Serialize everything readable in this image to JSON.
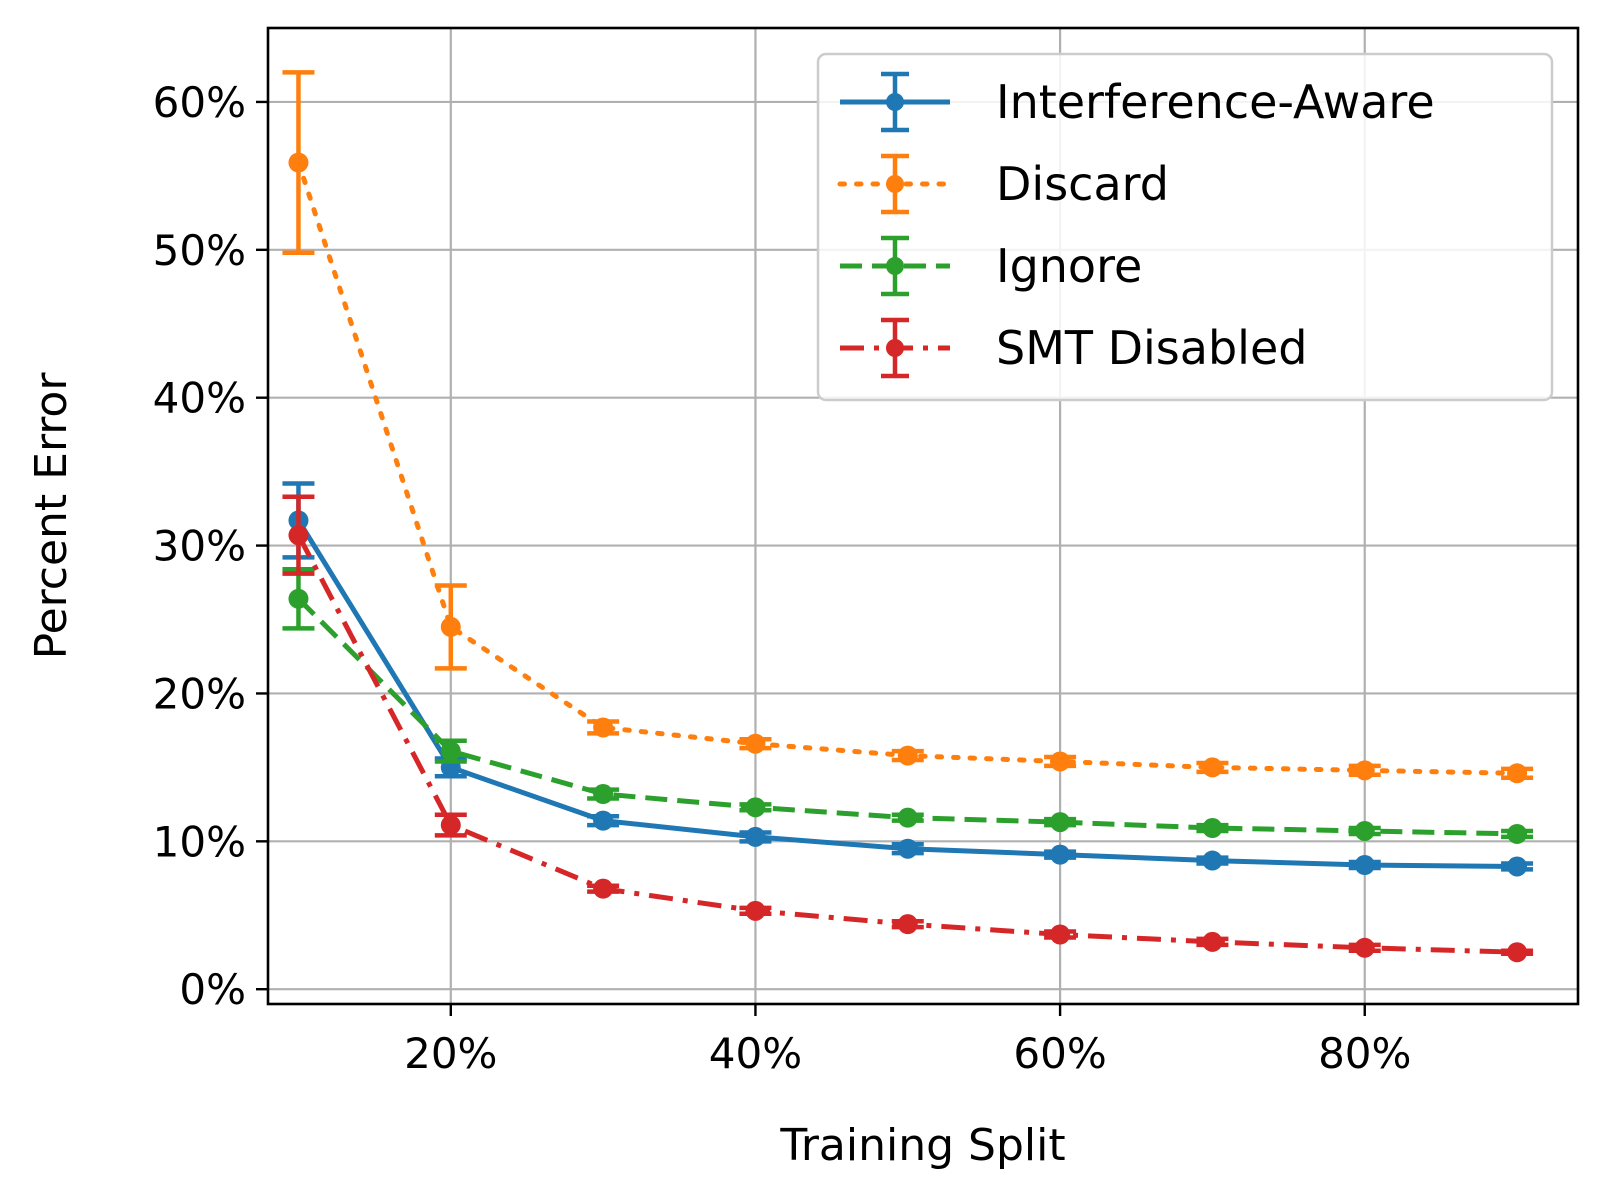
{
  "chart_data": {
    "type": "line",
    "title": "",
    "xlabel": "Training Split",
    "ylabel": "Percent Error",
    "xlim": [
      8,
      94
    ],
    "ylim": [
      -1,
      65
    ],
    "grid": true,
    "legend_position": "top-right",
    "x": [
      10,
      20,
      30,
      40,
      50,
      60,
      70,
      80,
      90
    ],
    "x_ticks": [
      {
        "value": 20,
        "label": "20%"
      },
      {
        "value": 40,
        "label": "40%"
      },
      {
        "value": 60,
        "label": "60%"
      },
      {
        "value": 80,
        "label": "80%"
      }
    ],
    "y_ticks": [
      {
        "value": 0,
        "label": "0%"
      },
      {
        "value": 10,
        "label": "10%"
      },
      {
        "value": 20,
        "label": "20%"
      },
      {
        "value": 30,
        "label": "30%"
      },
      {
        "value": 40,
        "label": "40%"
      },
      {
        "value": 50,
        "label": "50%"
      },
      {
        "value": 60,
        "label": "60%"
      }
    ],
    "series": [
      {
        "name": "Interference-Aware",
        "color": "#1f77b4",
        "line_style": "solid",
        "values": [
          31.7,
          15.0,
          11.4,
          10.3,
          9.5,
          9.1,
          8.7,
          8.4,
          8.3
        ],
        "errors": [
          2.5,
          0.6,
          0.3,
          0.3,
          0.3,
          0.2,
          0.2,
          0.2,
          0.2
        ]
      },
      {
        "name": "Discard",
        "color": "#ff7f0e",
        "line_style": "dotted",
        "values": [
          55.9,
          24.5,
          17.7,
          16.6,
          15.8,
          15.4,
          15.0,
          14.8,
          14.6
        ],
        "errors": [
          6.1,
          2.8,
          0.4,
          0.3,
          0.3,
          0.3,
          0.3,
          0.3,
          0.3
        ]
      },
      {
        "name": "Ignore",
        "color": "#2ca02c",
        "line_style": "dashed",
        "values": [
          26.4,
          16.1,
          13.2,
          12.3,
          11.6,
          11.3,
          10.9,
          10.7,
          10.5
        ],
        "errors": [
          2.0,
          0.7,
          0.3,
          0.2,
          0.2,
          0.2,
          0.2,
          0.2,
          0.2
        ]
      },
      {
        "name": "SMT Disabled",
        "color": "#d62728",
        "line_style": "dashdot",
        "values": [
          30.7,
          11.1,
          6.8,
          5.3,
          4.4,
          3.7,
          3.2,
          2.8,
          2.5
        ],
        "errors": [
          2.6,
          0.7,
          0.2,
          0.2,
          0.2,
          0.2,
          0.2,
          0.2,
          0.1
        ]
      }
    ]
  }
}
